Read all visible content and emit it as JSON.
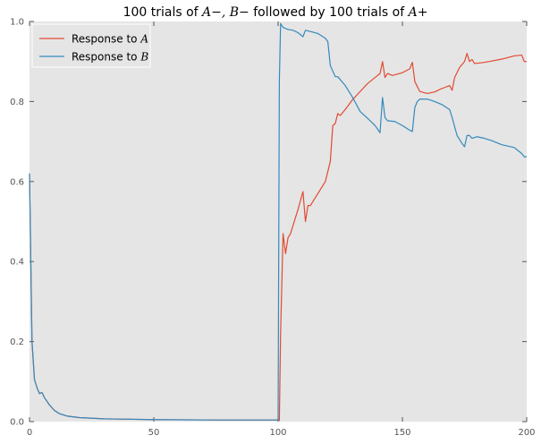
{
  "chart_data": {
    "type": "line",
    "title": {
      "prefix": "100 trials of ",
      "math1": "A−, B−",
      "middle": " followed by 100 trials of ",
      "math2": "A+"
    },
    "xlabel": "",
    "ylabel": "",
    "xlim": [
      0,
      200
    ],
    "ylim": [
      0.0,
      1.0
    ],
    "xticks": [
      0,
      50,
      100,
      150,
      200
    ],
    "yticks": [
      0.0,
      0.2,
      0.4,
      0.6,
      0.8,
      1.0
    ],
    "xtick_labels": [
      "0",
      "50",
      "100",
      "150",
      "200"
    ],
    "ytick_labels": [
      "0.0",
      "0.2",
      "0.4",
      "0.6",
      "0.8",
      "1.0"
    ],
    "grid": false,
    "legend_position": "top-left",
    "background": "#e5e5e5",
    "series": [
      {
        "name_prefix": "Response to ",
        "name_math": "A",
        "color": "#e24a33",
        "points": [
          [
            0,
            0.62
          ],
          [
            1,
            0.2
          ],
          [
            2,
            0.105
          ],
          [
            3,
            0.085
          ],
          [
            4,
            0.07
          ],
          [
            5,
            0.073
          ],
          [
            6,
            0.06
          ],
          [
            8,
            0.042
          ],
          [
            10,
            0.028
          ],
          [
            12,
            0.02
          ],
          [
            15,
            0.014
          ],
          [
            20,
            0.01
          ],
          [
            30,
            0.007
          ],
          [
            50,
            0.005
          ],
          [
            75,
            0.004
          ],
          [
            100,
            0.004
          ],
          [
            100.5,
            0.003
          ],
          [
            101,
            0.22
          ],
          [
            102,
            0.47
          ],
          [
            103,
            0.42
          ],
          [
            104,
            0.46
          ],
          [
            105,
            0.47
          ],
          [
            106,
            0.49
          ],
          [
            108,
            0.53
          ],
          [
            110,
            0.575
          ],
          [
            111,
            0.5
          ],
          [
            112,
            0.54
          ],
          [
            113,
            0.54
          ],
          [
            116,
            0.57
          ],
          [
            119,
            0.6
          ],
          [
            121,
            0.65
          ],
          [
            122,
            0.74
          ],
          [
            123,
            0.745
          ],
          [
            124,
            0.77
          ],
          [
            125,
            0.765
          ],
          [
            127,
            0.78
          ],
          [
            130,
            0.805
          ],
          [
            133,
            0.825
          ],
          [
            136,
            0.845
          ],
          [
            139,
            0.86
          ],
          [
            141,
            0.87
          ],
          [
            142,
            0.9
          ],
          [
            143,
            0.86
          ],
          [
            144,
            0.87
          ],
          [
            146,
            0.865
          ],
          [
            150,
            0.872
          ],
          [
            153,
            0.882
          ],
          [
            154,
            0.898
          ],
          [
            155,
            0.85
          ],
          [
            157,
            0.825
          ],
          [
            160,
            0.82
          ],
          [
            163,
            0.824
          ],
          [
            165,
            0.83
          ],
          [
            167,
            0.835
          ],
          [
            169,
            0.84
          ],
          [
            170,
            0.828
          ],
          [
            171,
            0.86
          ],
          [
            173,
            0.885
          ],
          [
            175,
            0.9
          ],
          [
            176,
            0.92
          ],
          [
            177,
            0.9
          ],
          [
            178,
            0.905
          ],
          [
            179,
            0.895
          ],
          [
            182,
            0.897
          ],
          [
            185,
            0.9
          ],
          [
            190,
            0.906
          ],
          [
            195,
            0.914
          ],
          [
            198,
            0.916
          ],
          [
            199,
            0.9
          ],
          [
            200,
            0.9
          ]
        ]
      },
      {
        "name_prefix": "Response to ",
        "name_math": "B",
        "color": "#348abd",
        "points": [
          [
            0,
            0.62
          ],
          [
            1,
            0.2
          ],
          [
            2,
            0.105
          ],
          [
            3,
            0.085
          ],
          [
            4,
            0.07
          ],
          [
            5,
            0.073
          ],
          [
            6,
            0.06
          ],
          [
            8,
            0.042
          ],
          [
            10,
            0.028
          ],
          [
            12,
            0.02
          ],
          [
            15,
            0.014
          ],
          [
            20,
            0.01
          ],
          [
            30,
            0.007
          ],
          [
            50,
            0.005
          ],
          [
            75,
            0.004
          ],
          [
            100,
            0.004
          ],
          [
            100.5,
            0.85
          ],
          [
            101,
            0.995
          ],
          [
            102,
            0.985
          ],
          [
            104,
            0.98
          ],
          [
            106,
            0.978
          ],
          [
            108,
            0.972
          ],
          [
            110,
            0.962
          ],
          [
            111,
            0.978
          ],
          [
            113,
            0.975
          ],
          [
            116,
            0.97
          ],
          [
            119,
            0.958
          ],
          [
            120,
            0.95
          ],
          [
            121,
            0.89
          ],
          [
            123,
            0.862
          ],
          [
            124,
            0.862
          ],
          [
            127,
            0.84
          ],
          [
            130,
            0.81
          ],
          [
            133,
            0.775
          ],
          [
            136,
            0.758
          ],
          [
            139,
            0.74
          ],
          [
            141,
            0.722
          ],
          [
            142,
            0.81
          ],
          [
            143,
            0.76
          ],
          [
            144,
            0.752
          ],
          [
            147,
            0.75
          ],
          [
            150,
            0.74
          ],
          [
            153,
            0.728
          ],
          [
            154,
            0.725
          ],
          [
            155,
            0.785
          ],
          [
            156,
            0.8
          ],
          [
            157,
            0.806
          ],
          [
            160,
            0.806
          ],
          [
            163,
            0.8
          ],
          [
            166,
            0.792
          ],
          [
            169,
            0.78
          ],
          [
            170,
            0.76
          ],
          [
            172,
            0.715
          ],
          [
            174,
            0.695
          ],
          [
            175,
            0.687
          ],
          [
            176,
            0.715
          ],
          [
            177,
            0.715
          ],
          [
            178,
            0.708
          ],
          [
            180,
            0.712
          ],
          [
            183,
            0.708
          ],
          [
            186,
            0.702
          ],
          [
            190,
            0.692
          ],
          [
            195,
            0.685
          ],
          [
            198,
            0.67
          ],
          [
            199,
            0.662
          ],
          [
            200,
            0.662
          ]
        ]
      }
    ]
  }
}
